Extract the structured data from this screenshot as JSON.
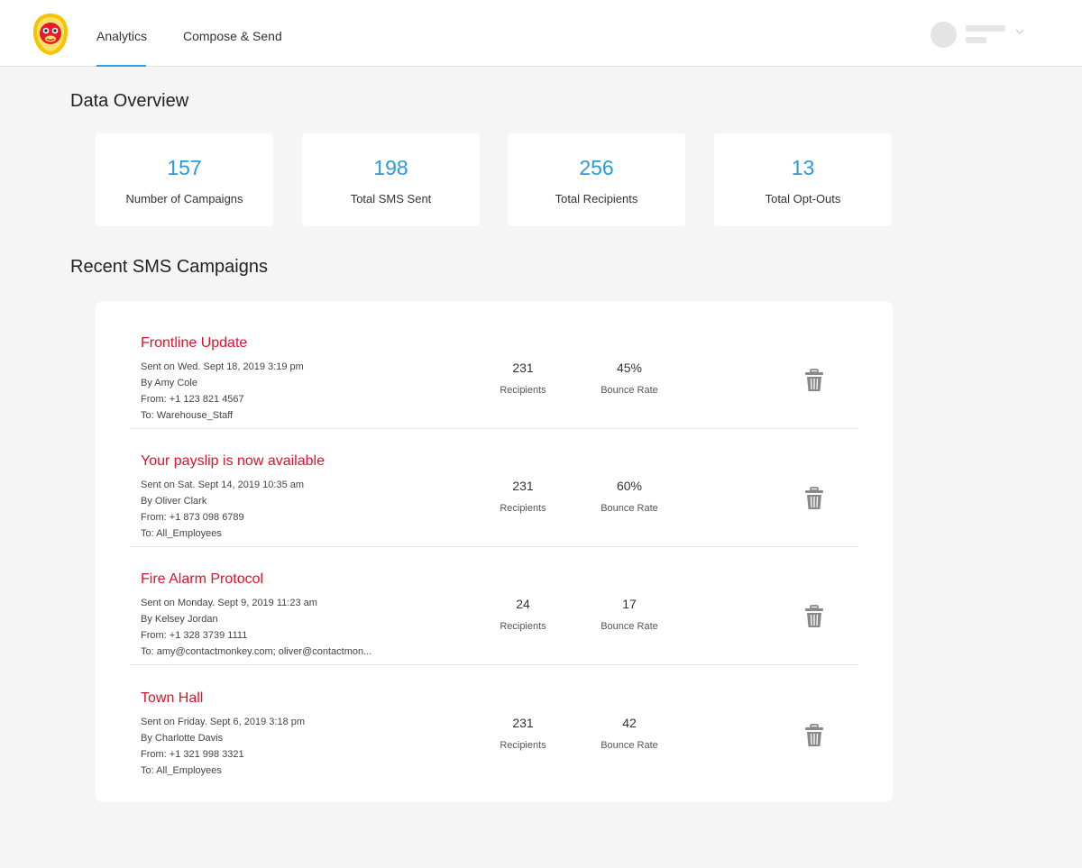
{
  "nav": {
    "tabs": [
      {
        "label": "Analytics",
        "active": true
      },
      {
        "label": "Compose & Send",
        "active": false
      }
    ],
    "accent_color": "#2aa3e0",
    "logo_colors": {
      "ring": "#f5c400",
      "face": "#e8192c"
    }
  },
  "overview": {
    "title": "Data Overview",
    "stats": [
      {
        "value": "157",
        "label": "Number of Campaigns"
      },
      {
        "value": "198",
        "label": "Total SMS Sent"
      },
      {
        "value": "256",
        "label": "Total Recipients"
      },
      {
        "value": "13",
        "label": "Total Opt-Outs"
      }
    ]
  },
  "campaigns": {
    "title": "Recent SMS Campaigns",
    "title_color": "#d9142c",
    "items": [
      {
        "title": "Frontline Update",
        "sent": "Sent on Wed. Sept 18, 2019 3:19 pm",
        "by": "By Amy Cole",
        "from": "From: +1 123 821 4567",
        "to": "To: Warehouse_Staff",
        "recipients": "231",
        "recipients_label": "Recipients",
        "bounce": "45%",
        "bounce_label": "Bounce Rate",
        "delete_icon": "trash-icon"
      },
      {
        "title": "Your payslip is now available",
        "sent": "Sent on Sat. Sept 14, 2019 10:35 am",
        "by": "By Oliver Clark",
        "from": "From: +1 873 098 6789",
        "to": "To: All_Employees",
        "recipients": "231",
        "recipients_label": "Recipients",
        "bounce": "60%",
        "bounce_label": "Bounce Rate",
        "delete_icon": "trash-icon"
      },
      {
        "title": "Fire Alarm Protocol",
        "sent": "Sent on Monday. Sept 9, 2019 11:23 am",
        "by": "By Kelsey Jordan",
        "from": "From: +1 328 3739 1111",
        "to": "To: amy@contactmonkey.com; oliver@contactmon...",
        "recipients": "24",
        "recipients_label": "Recipients",
        "bounce": "17",
        "bounce_label": "Bounce Rate",
        "delete_icon": "trash-icon"
      },
      {
        "title": "Town Hall",
        "sent": "Sent on Friday. Sept 6, 2019 3:18 pm",
        "by": "By Charlotte Davis",
        "from": "From: +1 321 998 3321",
        "to": "To: All_Employees",
        "recipients": "231",
        "recipients_label": "Recipients",
        "bounce": "42",
        "bounce_label": "Bounce Rate",
        "delete_icon": "trash-icon"
      }
    ]
  }
}
